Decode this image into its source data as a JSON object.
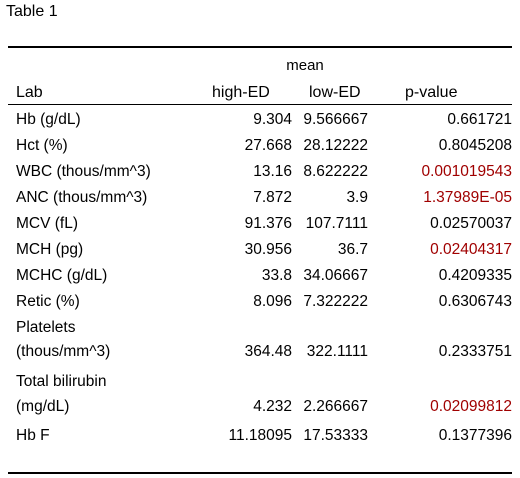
{
  "caption": "Table 1",
  "group_header": "mean",
  "columns": {
    "lab": "Lab",
    "high": "high-ED",
    "low": "low-ED",
    "p": "p-value"
  },
  "rows": [
    {
      "label": "Hb (g/dL)",
      "high": "9.304",
      "low": "9.566667",
      "p": "0.661721",
      "significant": false
    },
    {
      "label": "Hct (%)",
      "high": "27.668",
      "low": "28.12222",
      "p": "0.8045208",
      "significant": false
    },
    {
      "label": "WBC (thous/mm^3)",
      "high": "13.16",
      "low": "8.622222",
      "p": "0.001019543",
      "significant": true
    },
    {
      "label": "ANC (thous/mm^3)",
      "high": "7.872",
      "low": "3.9",
      "p": "1.37989E-05",
      "significant": true
    },
    {
      "label": "MCV (fL)",
      "high": "91.376",
      "low": "107.7111",
      "p": "0.02570037",
      "significant": false
    },
    {
      "label": "MCH (pg)",
      "high": "30.956",
      "low": "36.7",
      "p": "0.02404317",
      "significant": true
    },
    {
      "label": "MCHC (g/dL)",
      "high": "33.8",
      "low": "34.06667",
      "p": "0.4209335",
      "significant": false
    },
    {
      "label": "Retic (%)",
      "high": "8.096",
      "low": "7.322222",
      "p": "0.6306743",
      "significant": false
    },
    {
      "label_line1": "Platelets",
      "label_line2": "(thous/mm^3)",
      "high": "364.48",
      "low": "322.1111",
      "p": "0.2333751",
      "significant": false
    },
    {
      "label_line1": "Total bilirubin",
      "label_line2": "(mg/dL)",
      "high": "4.232",
      "low": "2.266667",
      "p": "0.02099812",
      "significant": true
    },
    {
      "label": "Hb F",
      "high": "11.18095",
      "low": "17.53333",
      "p": "0.1377396",
      "significant": false
    }
  ],
  "colors": {
    "text": "#000000",
    "significant": "#a00000",
    "rule": "#000000"
  }
}
